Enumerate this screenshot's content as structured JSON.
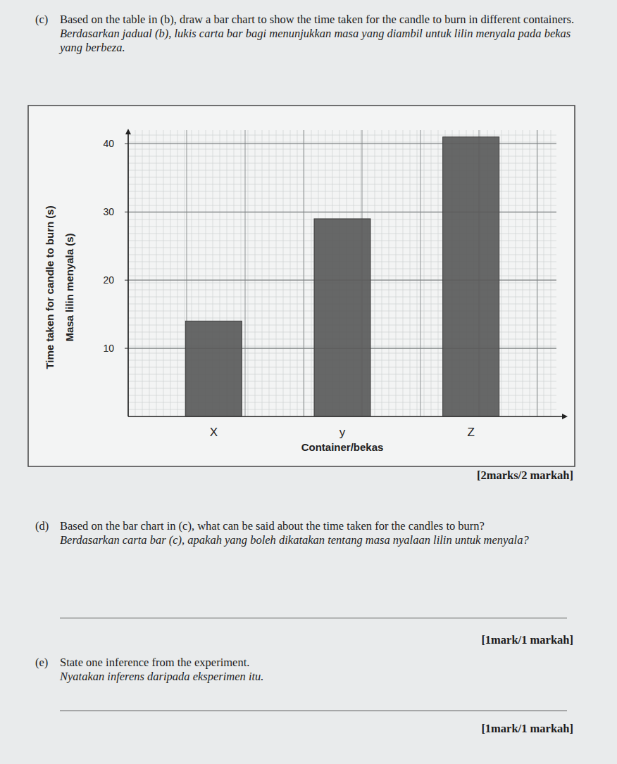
{
  "chart_data": {
    "type": "bar",
    "x_label": "Container/bekas",
    "y_label": "Time taken for candle to burn (s)",
    "y_label_ms": "Masa lilin menyala (s)",
    "categories": [
      "X",
      "y",
      "Z"
    ],
    "values": [
      14,
      29,
      41
    ],
    "color": "#5a5a5a",
    "ylim": [
      0,
      42
    ],
    "yticks": [
      10,
      20,
      30,
      40
    ],
    "grid": true
  },
  "questions": [
    {
      "label": "(c)",
      "text": "Based on the table in (b), draw a bar chart to show the time taken for the candle to burn in different containers.",
      "text_ms": "Berdasarkan jadual (b), lukis carta bar bagi menunjukkan masa yang diambil untuk lilin menyala pada bekas yang berbeza.",
      "marks": "[2marks/2 markah]"
    },
    {
      "label": "(d)",
      "text": "Based on the bar chart in (c), what can be said about the time taken for the candles to burn?",
      "text_ms": "Berdasarkan carta bar (c), apakah yang boleh dikatakan tentang masa nyalaan lilin untuk menyala?",
      "marks": "[1mark/1 markah]"
    },
    {
      "label": "(e)",
      "text": "State one inference from the experiment.",
      "text_ms": "Nyatakan inferens daripada eksperimen itu.",
      "marks": "[1mark/1 markah]"
    }
  ]
}
